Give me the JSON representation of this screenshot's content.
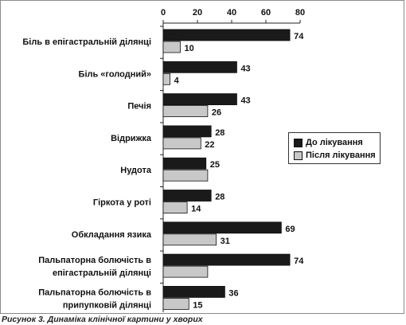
{
  "chart_data": {
    "type": "bar",
    "orientation": "horizontal",
    "categories": [
      [
        "Біль в епігастральній ділянці"
      ],
      [
        "Біль «голодний»"
      ],
      [
        "Печія"
      ],
      [
        "Відрижка"
      ],
      [
        "Нудота"
      ],
      [
        "Гіркота у роті"
      ],
      [
        "Обкладання язика"
      ],
      [
        "Пальпаторна болючість в",
        "епігастральній ділянці"
      ],
      [
        "Пальпаторна болючість в",
        "припупковій ділянці"
      ]
    ],
    "series": [
      {
        "name": "До лікування",
        "values": [
          74,
          43,
          43,
          28,
          25,
          28,
          69,
          74,
          36
        ],
        "color": "#1a1a1a",
        "labels": [
          "74",
          "43",
          "43",
          "28",
          "25",
          "28",
          "69",
          "74",
          "36"
        ]
      },
      {
        "name": "Після лікування",
        "values": [
          10,
          4,
          26,
          22,
          26,
          14,
          31,
          26,
          15
        ],
        "color": "#c8c8c8",
        "labels": [
          "10",
          "4",
          "26",
          "22",
          "",
          "14",
          "31",
          "",
          "15"
        ]
      }
    ],
    "xlim": [
      0,
      80
    ],
    "xticks": [
      0,
      20,
      40,
      60,
      80
    ],
    "axis_position": "top",
    "legend_placement": "right",
    "grid": false
  },
  "caption": "Рисунок 3. Динаміка клінічної картини у хворих"
}
